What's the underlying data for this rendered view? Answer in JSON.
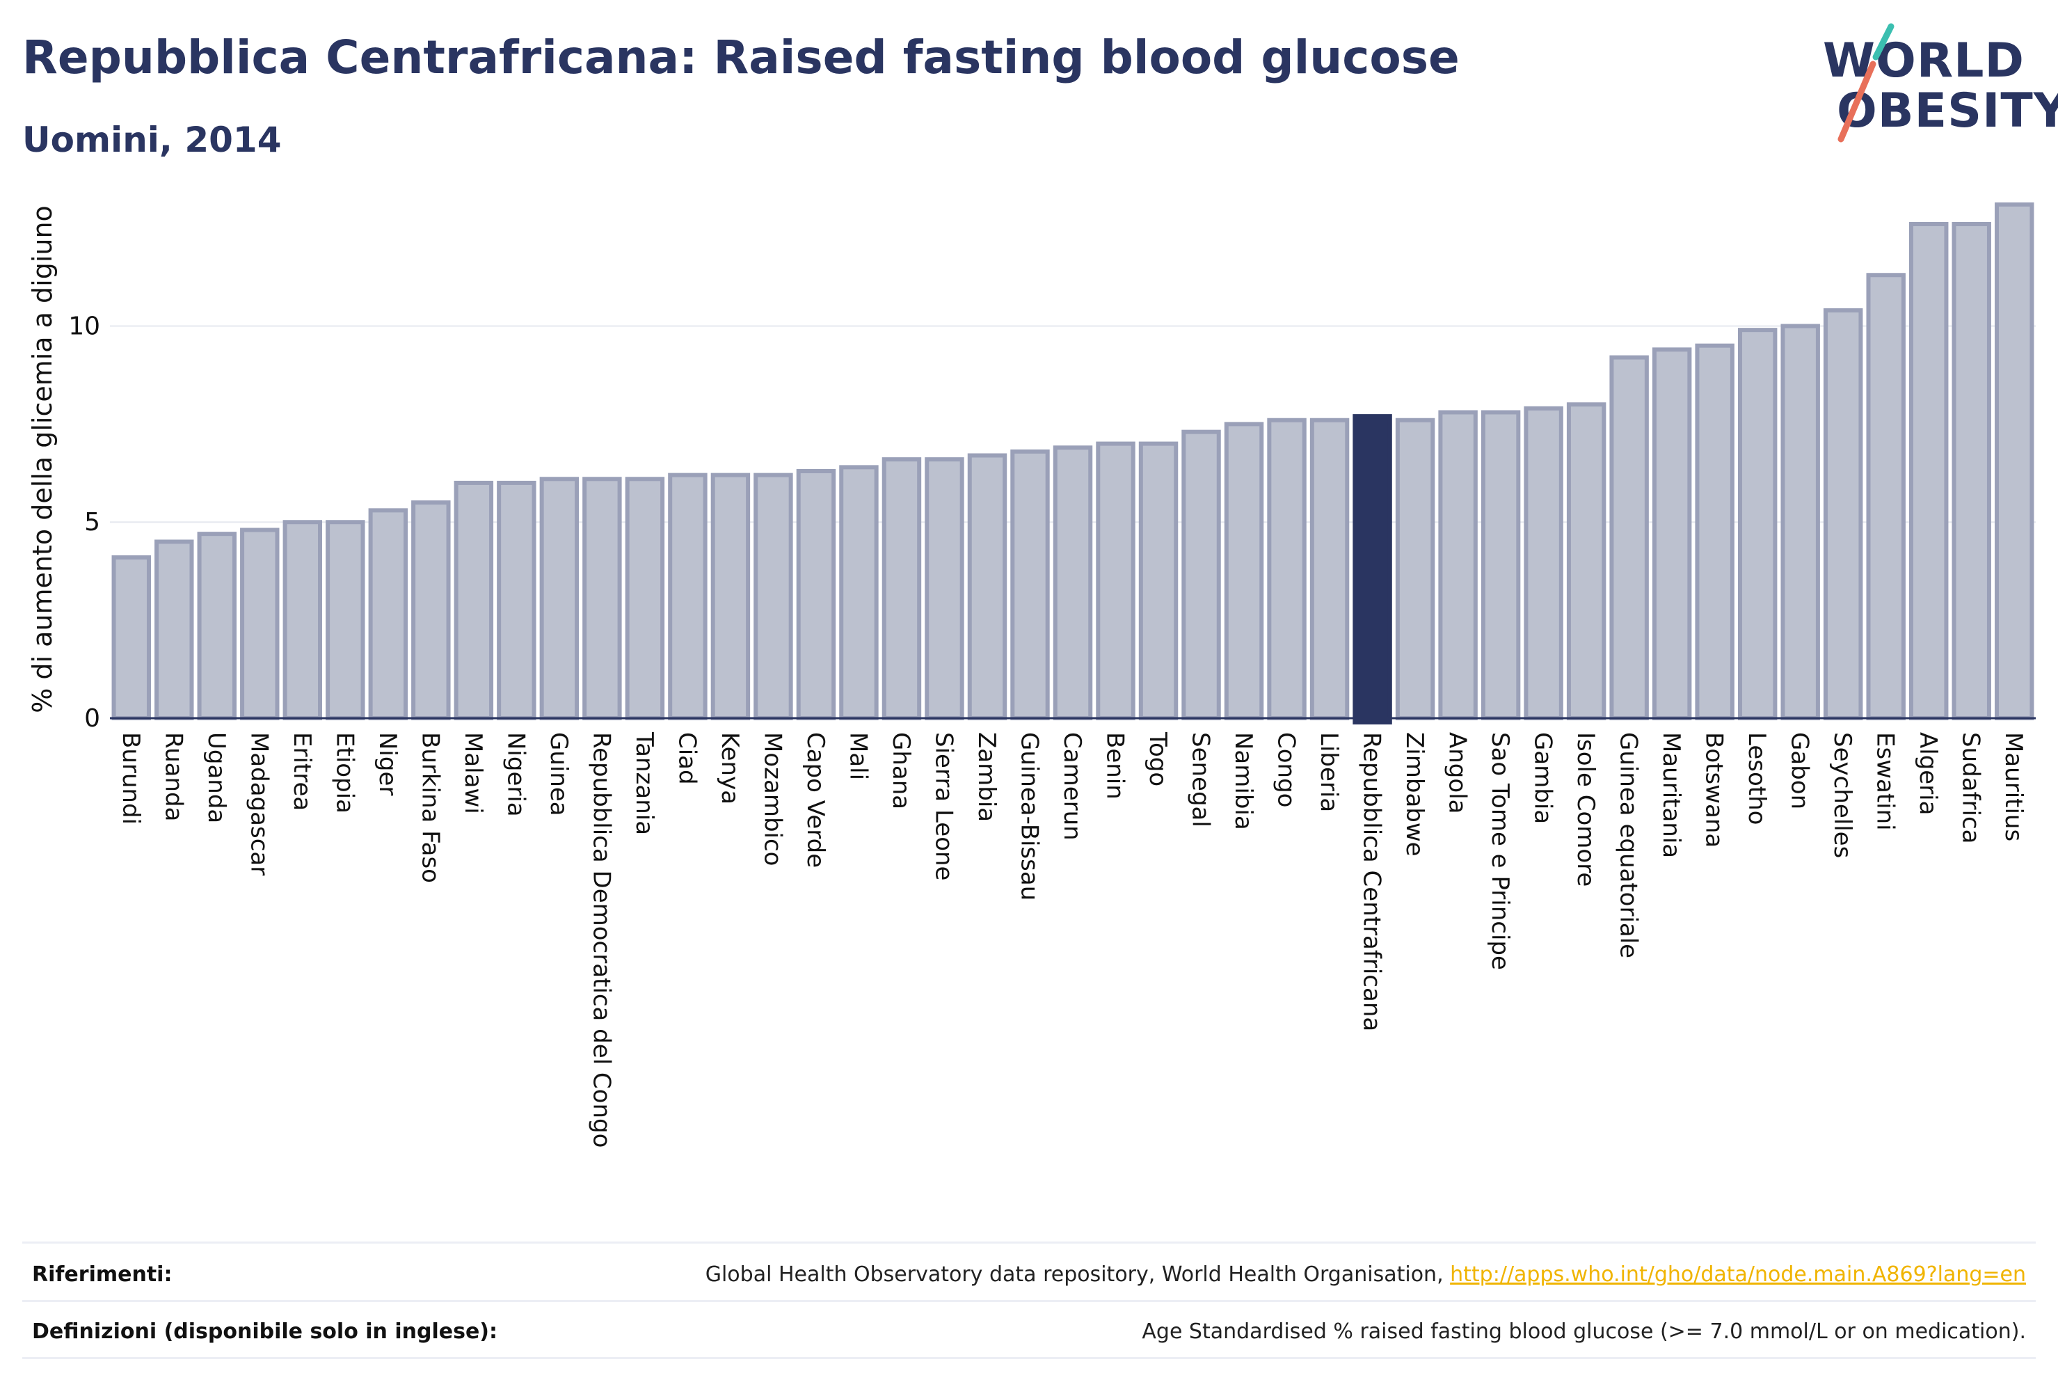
{
  "header": {
    "title": "Repubblica Centrafricana: Raised fasting blood glucose",
    "subtitle": "Uomini, 2014"
  },
  "logo": {
    "line1": "WORLD",
    "line2": "OBESITY",
    "colors": {
      "text": "#2a3561",
      "slash_top": "#3bbfb0",
      "slash_bottom": "#e8705a"
    }
  },
  "chart_data": {
    "type": "bar",
    "title": "",
    "xlabel": "",
    "ylabel": "% di aumento della glicemia a digiuno",
    "ylim": [
      0,
      13.7
    ],
    "yticks": [
      0,
      5,
      10
    ],
    "grid": true,
    "highlight": "Repubblica Centrafricana",
    "colors": {
      "bar": "#bcc1cf",
      "bar_border": "#9aa0b8",
      "highlight": "#2a3561",
      "grid": "#e6e8ef",
      "axis": "#2a3561"
    },
    "categories": [
      "Burundi",
      "Ruanda",
      "Uganda",
      "Madagascar",
      "Eritrea",
      "Etiopia",
      "Niger",
      "Burkina Faso",
      "Malawi",
      "Nigeria",
      "Guinea",
      "Repubblica Democratica del Congo",
      "Tanzania",
      "Ciad",
      "Kenya",
      "Mozambico",
      "Capo Verde",
      "Mali",
      "Ghana",
      "Sierra Leone",
      "Zambia",
      "Guinea-Bissau",
      "Camerun",
      "Benin",
      "Togo",
      "Senegal",
      "Namibia",
      "Congo",
      "Liberia",
      "Repubblica Centrafricana",
      "Zimbabwe",
      "Angola",
      "Sao Tome e Principe",
      "Gambia",
      "Isole Comore",
      "Guinea equatoriale",
      "Mauritania",
      "Botswana",
      "Lesotho",
      "Gabon",
      "Seychelles",
      "Eswatini",
      "Algeria",
      "Sudafrica",
      "Mauritius"
    ],
    "values": [
      4.1,
      4.5,
      4.7,
      4.8,
      5.0,
      5.0,
      5.3,
      5.5,
      6.0,
      6.0,
      6.1,
      6.1,
      6.1,
      6.2,
      6.2,
      6.2,
      6.3,
      6.4,
      6.6,
      6.6,
      6.7,
      6.8,
      6.9,
      7.0,
      7.0,
      7.3,
      7.5,
      7.6,
      7.6,
      7.7,
      7.6,
      7.8,
      7.8,
      7.9,
      8.0,
      9.2,
      9.4,
      9.5,
      9.9,
      10.0,
      10.4,
      11.3,
      12.6,
      12.6,
      13.1
    ]
  },
  "footer": {
    "references_label": "Riferimenti:",
    "references_text": "Global Health Observatory data repository, World Health Organisation, ",
    "references_link": "http://apps.who.int/gho/data/node.main.A869?lang=en",
    "definitions_label": "Definizioni (disponibile solo in inglese):",
    "definitions_text": "Age Standardised % raised fasting blood glucose (>= 7.0 mmol/L or on medication)."
  }
}
